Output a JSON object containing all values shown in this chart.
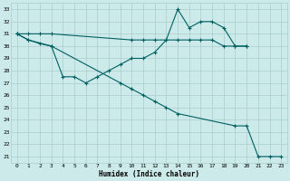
{
  "xlabel": "Humidex (Indice chaleur)",
  "bg_color": "#cceaea",
  "grid_color": "#aacccc",
  "line_color": "#006060",
  "xlim": [
    -0.5,
    23.5
  ],
  "ylim": [
    20.5,
    33.5
  ],
  "xticks": [
    0,
    1,
    2,
    3,
    4,
    5,
    6,
    7,
    8,
    9,
    10,
    11,
    12,
    13,
    14,
    15,
    16,
    17,
    18,
    19,
    20,
    21,
    22,
    23
  ],
  "yticks": [
    21,
    22,
    23,
    24,
    25,
    26,
    27,
    28,
    29,
    30,
    31,
    32,
    33
  ],
  "line1_x": [
    0,
    1,
    2,
    3,
    10,
    11,
    12,
    13,
    14,
    15,
    16,
    17,
    18,
    19,
    20
  ],
  "line1_y": [
    31,
    31,
    31,
    31,
    30.5,
    30.5,
    30.5,
    30.5,
    30.5,
    30.5,
    30.5,
    30.5,
    30,
    30,
    30
  ],
  "line2_x": [
    0,
    1,
    3,
    4,
    5,
    6,
    7,
    8,
    9,
    10,
    11,
    12,
    13,
    14,
    15,
    16,
    17,
    18,
    19,
    20
  ],
  "line2_y": [
    31,
    30.5,
    30,
    27.5,
    27.5,
    27,
    27.5,
    28,
    28.5,
    29,
    29,
    29.5,
    30.5,
    33,
    31.5,
    32,
    32,
    31.5,
    30,
    30
  ],
  "line3_x": [
    0,
    1,
    2,
    3,
    9,
    10,
    11,
    12,
    13,
    14,
    19,
    20,
    21,
    22,
    23
  ],
  "line3_y": [
    31,
    30.5,
    30.2,
    30,
    27,
    26.5,
    26,
    25.5,
    25,
    24.5,
    23.5,
    23.5,
    21,
    21,
    21
  ]
}
